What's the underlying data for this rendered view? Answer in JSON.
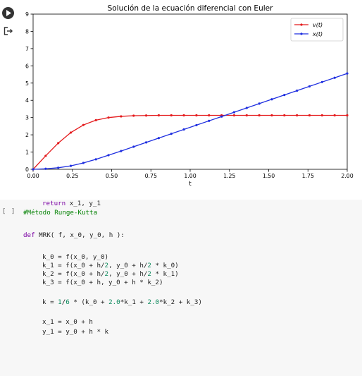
{
  "colors": {
    "accent_red": "#e41a1c",
    "accent_blue": "#1f2fe0"
  },
  "output_icons": {
    "run": "play-circle-icon",
    "output": "output-redirect-icon"
  },
  "chart_data": {
    "type": "line",
    "title": "Solución de la ecuación diferencial con Euler",
    "xlabel": "t",
    "ylabel": "",
    "xlim": [
      0,
      2
    ],
    "ylim": [
      0,
      9
    ],
    "xticks": [
      "0.00",
      "0.25",
      "0.50",
      "0.75",
      "1.00",
      "1.25",
      "1.50",
      "1.75",
      "2.00"
    ],
    "yticks": [
      "0",
      "1",
      "2",
      "3",
      "4",
      "5",
      "6",
      "7",
      "8",
      "9"
    ],
    "legend_position": "top-right",
    "grid": false,
    "series": [
      {
        "name": "v(t)",
        "color": "#e41a1c",
        "x": [
          0,
          0.08,
          0.16,
          0.24,
          0.32,
          0.4,
          0.48,
          0.56,
          0.64,
          0.72,
          0.8,
          0.88,
          0.96,
          1.04,
          1.12,
          1.2,
          1.28,
          1.36,
          1.44,
          1.52,
          1.6,
          1.68,
          1.76,
          1.84,
          1.92,
          2.0
        ],
        "y": [
          0,
          0.78,
          1.52,
          2.13,
          2.57,
          2.85,
          3.0,
          3.07,
          3.11,
          3.12,
          3.13,
          3.13,
          3.13,
          3.13,
          3.13,
          3.13,
          3.13,
          3.13,
          3.13,
          3.13,
          3.13,
          3.13,
          3.13,
          3.13,
          3.13,
          3.13
        ]
      },
      {
        "name": "x(t)",
        "color": "#1f2fe0",
        "x": [
          0,
          0.08,
          0.16,
          0.24,
          0.32,
          0.4,
          0.48,
          0.56,
          0.64,
          0.72,
          0.8,
          0.88,
          0.96,
          1.04,
          1.12,
          1.2,
          1.28,
          1.36,
          1.44,
          1.52,
          1.6,
          1.68,
          1.76,
          1.84,
          1.92,
          2.0
        ],
        "y": [
          0,
          0.03,
          0.09,
          0.2,
          0.37,
          0.58,
          0.82,
          1.06,
          1.31,
          1.56,
          1.81,
          2.06,
          2.31,
          2.56,
          2.81,
          3.06,
          3.31,
          3.56,
          3.81,
          4.06,
          4.31,
          4.56,
          4.81,
          5.06,
          5.31,
          5.56
        ]
      }
    ]
  },
  "code_cell": {
    "run_brackets": "[ ]",
    "lines": [
      {
        "indent": 0,
        "parts": [
          {
            "t": "#Método Runge-Kutta",
            "c": "comment"
          }
        ]
      },
      {
        "indent": 0,
        "parts": []
      },
      {
        "indent": 0,
        "parts": [
          {
            "t": "def",
            "c": "kw"
          },
          {
            "t": " MRK( f, x_0, y_0, h ):",
            "c": ""
          }
        ]
      },
      {
        "indent": 0,
        "parts": []
      },
      {
        "indent": 1,
        "parts": [
          {
            "t": "k_0 = f(x_0, y_0)",
            "c": ""
          }
        ]
      },
      {
        "indent": 1,
        "parts": [
          {
            "t": "k_1 = f(x_0 + h/",
            "c": ""
          },
          {
            "t": "2",
            "c": "num"
          },
          {
            "t": ", y_0 + h/",
            "c": ""
          },
          {
            "t": "2",
            "c": "num"
          },
          {
            "t": " * k_0)",
            "c": ""
          }
        ]
      },
      {
        "indent": 1,
        "parts": [
          {
            "t": "k_2 = f(x_0 + h/",
            "c": ""
          },
          {
            "t": "2",
            "c": "num"
          },
          {
            "t": ", y_0 + h/",
            "c": ""
          },
          {
            "t": "2",
            "c": "num"
          },
          {
            "t": " * k_1)",
            "c": ""
          }
        ]
      },
      {
        "indent": 1,
        "parts": [
          {
            "t": "k_3 = f(x_0 + h, y_0 + h * k_2)",
            "c": ""
          }
        ]
      },
      {
        "indent": 0,
        "parts": []
      },
      {
        "indent": 1,
        "parts": [
          {
            "t": "k = ",
            "c": ""
          },
          {
            "t": "1",
            "c": "num"
          },
          {
            "t": "/",
            "c": ""
          },
          {
            "t": "6",
            "c": "num"
          },
          {
            "t": " * (k_0 + ",
            "c": ""
          },
          {
            "t": "2.0",
            "c": "num"
          },
          {
            "t": "*k_1 + ",
            "c": ""
          },
          {
            "t": "2.0",
            "c": "num"
          },
          {
            "t": "*k_2 + k_3)",
            "c": ""
          }
        ]
      },
      {
        "indent": 0,
        "parts": []
      },
      {
        "indent": 1,
        "parts": [
          {
            "t": "x_1 = x_0 + h",
            "c": ""
          }
        ]
      },
      {
        "indent": 1,
        "parts": [
          {
            "t": "y_1 = y_0 + h * k",
            "c": ""
          }
        ]
      },
      {
        "indent": 0,
        "parts": []
      },
      {
        "indent": 1,
        "parts": [
          {
            "t": "return",
            "c": "kw"
          },
          {
            "t": " x_1, y_1",
            "c": ""
          }
        ]
      }
    ]
  }
}
